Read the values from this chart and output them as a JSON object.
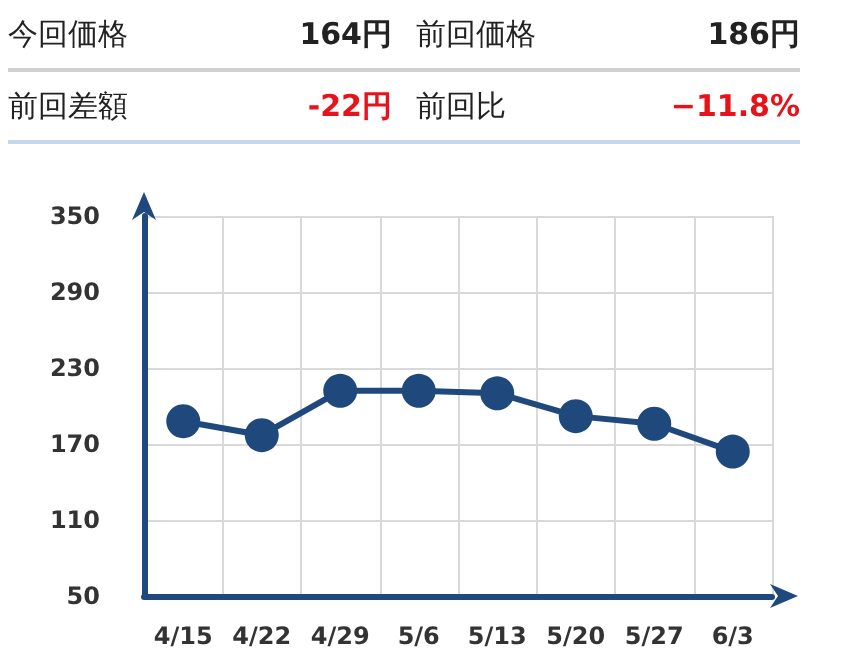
{
  "chart_data": {
    "type": "line",
    "annotations": [
      "今回価格",
      "164円",
      "前回価格",
      "186円",
      "前回差額",
      "-22円",
      "前回比",
      "−11.8%"
    ],
    "categories": [
      "4/15",
      "4/22",
      "4/29",
      "5/6",
      "5/13",
      "5/20",
      "5/27",
      "6/3"
    ],
    "series": [
      {
        "color": "#1f497d",
        "values": [
          188,
          177,
          212,
          212,
          210,
          192,
          186,
          164
        ]
      }
    ],
    "ylim": [
      50,
      350
    ],
    "yticks": [
      50,
      110,
      170,
      230,
      290,
      350
    ],
    "grid": true,
    "marker": "circle",
    "line_style": "solid"
  }
}
